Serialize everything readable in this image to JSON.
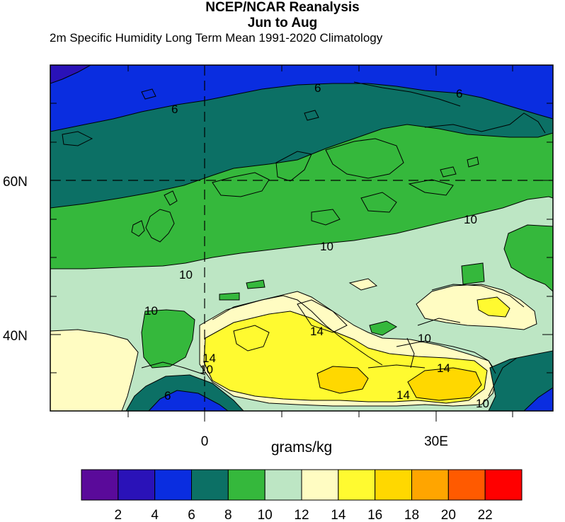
{
  "title_line1": "NCEP/NCAR Reanalysis",
  "title_line2": "Jun to Aug",
  "subtitle": "2m Specific Humidity Long Term Mean 1991-2020 Climatology",
  "axes": {
    "y_ticks": [
      "60N",
      "40N"
    ],
    "x_ticks": [
      "0",
      "30E"
    ],
    "x_unit": "grams/kg"
  },
  "contour_labels": [
    "6",
    "6",
    "6",
    "10",
    "10",
    "10",
    "10",
    "14",
    "14",
    "10",
    "14",
    "14",
    "10",
    "10",
    "6"
  ],
  "colorbar": {
    "ticks": [
      "2",
      "4",
      "6",
      "8",
      "10",
      "12",
      "14",
      "16",
      "18",
      "20",
      "22"
    ],
    "colors": [
      "#5a0a9a",
      "#2a12b8",
      "#0a2de0",
      "#0c7065",
      "#35b83c",
      "#bde6c4",
      "#fffcc2",
      "#fffa30",
      "#ffd800",
      "#ffa500",
      "#ff5a00",
      "#ff0000"
    ]
  },
  "chart_data": {
    "type": "heatmap",
    "title": "NCEP/NCAR Reanalysis Jun to Aug",
    "subtitle": "2m Specific Humidity Long Term Mean 1991-2020 Climatology",
    "units": "grams/kg",
    "y_ticks": [
      "60N",
      "40N"
    ],
    "x_ticks": [
      "0",
      "30E"
    ],
    "contour_interval": 2,
    "levels": [
      2,
      4,
      6,
      8,
      10,
      12,
      14,
      16,
      18,
      20,
      22
    ]
  }
}
